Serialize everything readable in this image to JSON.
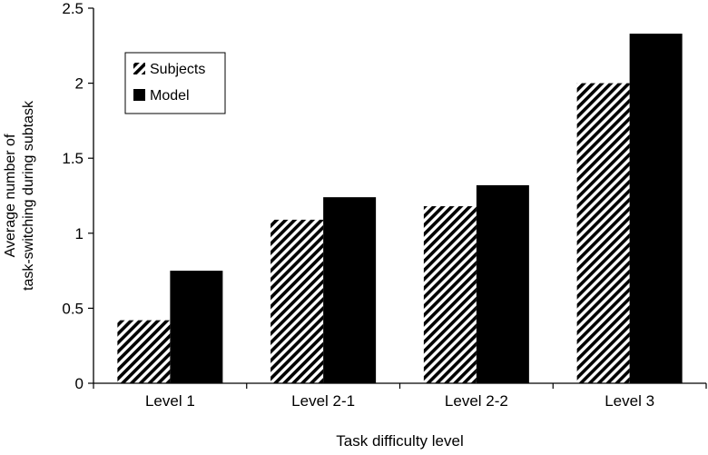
{
  "chart_data": {
    "type": "bar",
    "title": "",
    "xlabel": "Task difficulty level",
    "ylabel": [
      "Average number of",
      "task-switching during subtask"
    ],
    "categories": [
      "Level 1",
      "Level 2-1",
      "Level 2-2",
      "Level 3"
    ],
    "ylim": [
      0,
      2.5
    ],
    "yticks": [
      "0",
      "0.5",
      "1",
      "1.5",
      "2",
      "2.5"
    ],
    "grid": false,
    "legend_position": "top-left",
    "series": [
      {
        "name": "Subjects",
        "values": [
          0.42,
          1.09,
          1.18,
          2.0
        ],
        "style": "hatched",
        "color": "#000000"
      },
      {
        "name": "Model",
        "values": [
          0.75,
          1.24,
          1.32,
          2.33
        ],
        "style": "solid",
        "color": "#000000"
      }
    ]
  }
}
